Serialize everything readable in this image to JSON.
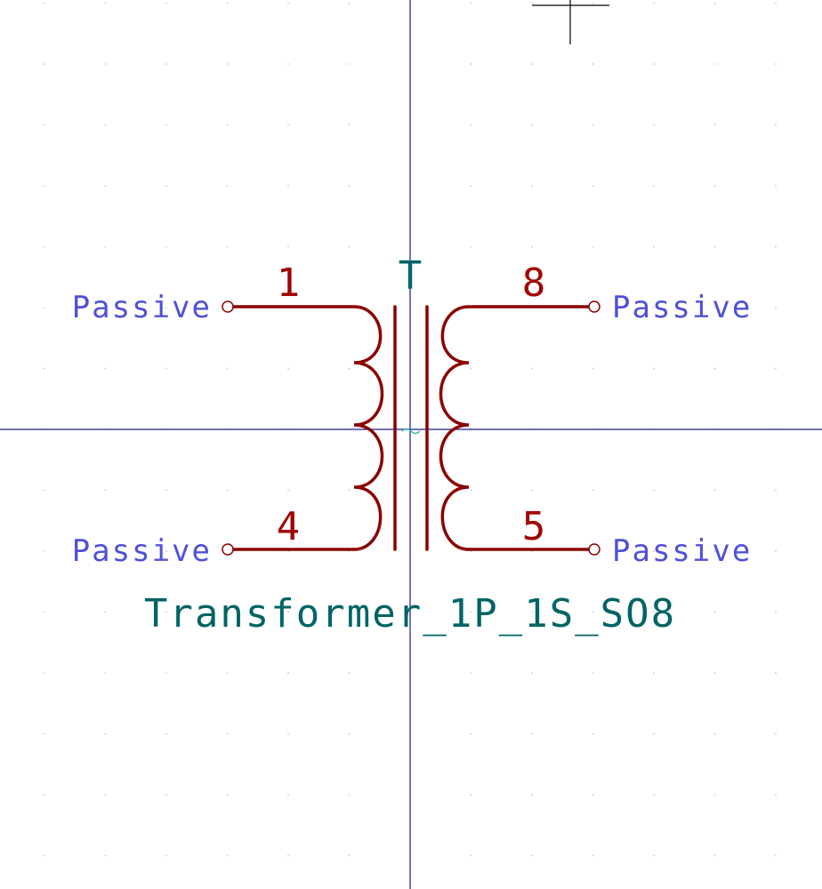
{
  "colors": {
    "background": "#ffffff",
    "grid_dot": "#c8c8c8",
    "axis": "#1a1a8c",
    "symbol_body": "#8b0000",
    "pin_line": "#8b0000",
    "pin_number": "#a00000",
    "pin_type": "#5050d8",
    "reference": "#006464",
    "value": "#006464",
    "anchor": "#3cb4b4"
  },
  "symbol": {
    "reference": "T",
    "value": "Transformer_1P_1S_SO8"
  },
  "pins": [
    {
      "number": "1",
      "type": "Passive"
    },
    {
      "number": "4",
      "type": "Passive"
    },
    {
      "number": "8",
      "type": "Passive"
    },
    {
      "number": "5",
      "type": "Passive"
    }
  ]
}
